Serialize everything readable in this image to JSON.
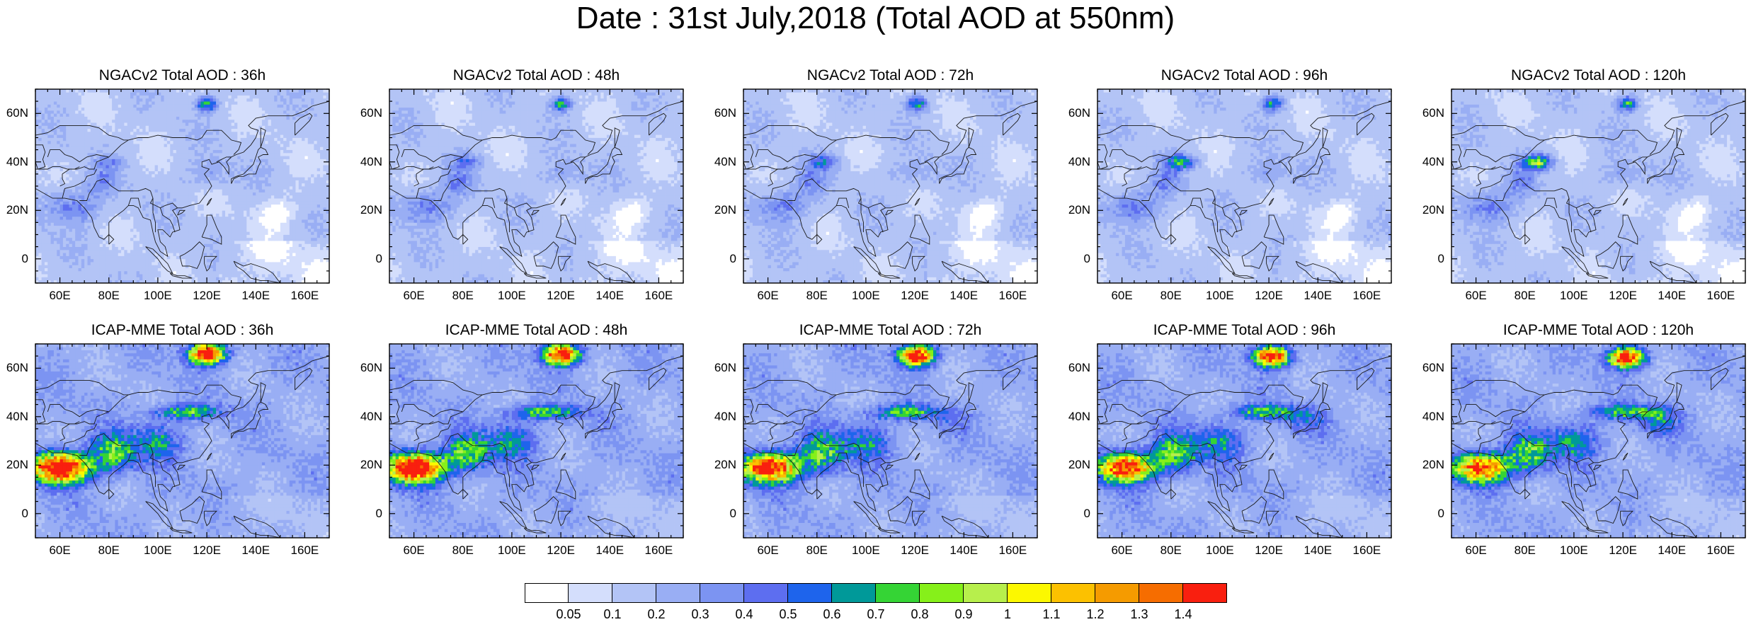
{
  "title": "Date : 31st July,2018 (Total AOD at 550nm)",
  "rows": [
    {
      "model": "NGACv2",
      "panels": [
        {
          "title": "NGACv2 Total AOD : 36h",
          "lead_h": 36
        },
        {
          "title": "NGACv2 Total AOD : 48h",
          "lead_h": 48
        },
        {
          "title": "NGACv2 Total AOD : 72h",
          "lead_h": 72
        },
        {
          "title": "NGACv2 Total AOD : 96h",
          "lead_h": 96
        },
        {
          "title": "NGACv2 Total AOD : 120h",
          "lead_h": 120
        }
      ]
    },
    {
      "model": "ICAP-MME",
      "panels": [
        {
          "title": "ICAP-MME Total AOD : 36h",
          "lead_h": 36
        },
        {
          "title": "ICAP-MME Total AOD : 48h",
          "lead_h": 48
        },
        {
          "title": "ICAP-MME Total AOD : 72h",
          "lead_h": 72
        },
        {
          "title": "ICAP-MME Total AOD : 96h",
          "lead_h": 96
        },
        {
          "title": "ICAP-MME Total AOD : 120h",
          "lead_h": 120
        }
      ]
    }
  ],
  "map_extent": {
    "lon": [
      50,
      170
    ],
    "lat": [
      -10,
      70
    ]
  },
  "lon_ticks": [
    {
      "value": 60,
      "label": "60E"
    },
    {
      "value": 80,
      "label": "80E"
    },
    {
      "value": 100,
      "label": "100E"
    },
    {
      "value": 120,
      "label": "120E"
    },
    {
      "value": 140,
      "label": "140E"
    },
    {
      "value": 160,
      "label": "160E"
    }
  ],
  "lat_ticks": [
    {
      "value": 0,
      "label": "0"
    },
    {
      "value": 20,
      "label": "20N"
    },
    {
      "value": 40,
      "label": "40N"
    },
    {
      "value": 60,
      "label": "60N"
    }
  ],
  "colorbar": {
    "colors": [
      "#ffffff",
      "#d4defc",
      "#b3c4f6",
      "#99aef4",
      "#7c94f2",
      "#5d6ef0",
      "#1e64ec",
      "#009999",
      "#35d435",
      "#86f01a",
      "#b7ef4c",
      "#fcf800",
      "#fcc100",
      "#f59b00",
      "#f66d00",
      "#f91f0f"
    ],
    "labels": [
      "0.05",
      "0.1",
      "0.2",
      "0.3",
      "0.4",
      "0.5",
      "0.6",
      "0.7",
      "0.8",
      "0.9",
      "1",
      "1.1",
      "1.2",
      "1.3",
      "1.4"
    ]
  }
}
